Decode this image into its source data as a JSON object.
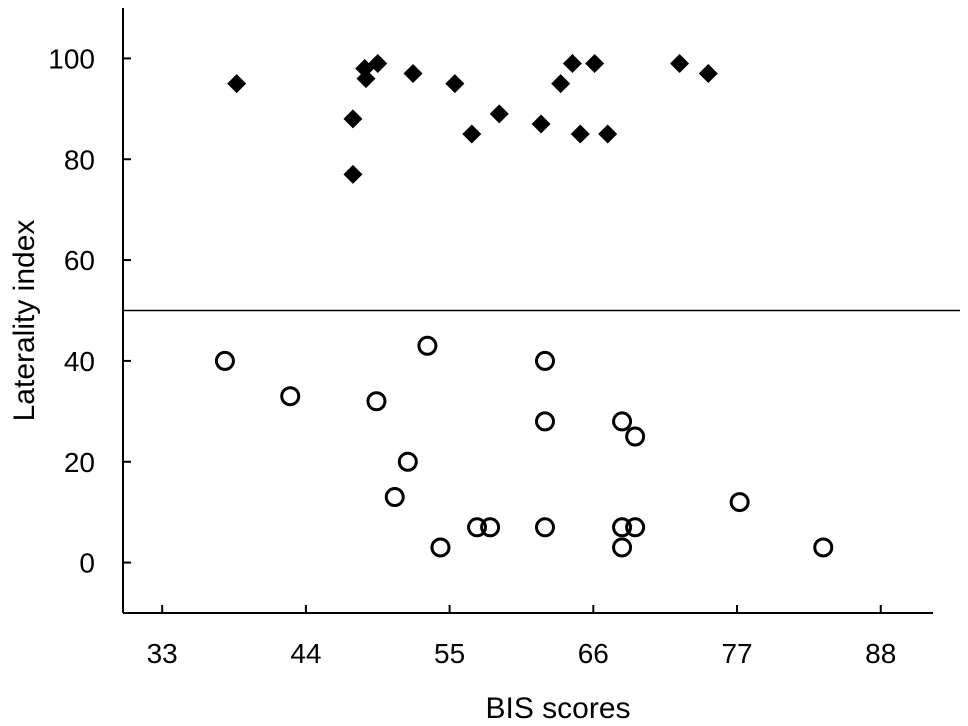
{
  "chart_data": {
    "type": "scatter",
    "title": "",
    "xlabel": "BIS scores",
    "ylabel": "Laterality index",
    "xlim": [
      30,
      92
    ],
    "ylim": [
      -10,
      110
    ],
    "x_ticks": [
      33,
      44,
      55,
      66,
      77,
      88
    ],
    "y_ticks": [
      0,
      20,
      40,
      60,
      80,
      100
    ],
    "grid": false,
    "reference_line": {
      "y": 50
    },
    "series": [
      {
        "marker": "filled-diamond",
        "color": "#000000",
        "points": [
          [
            38.7,
            95
          ],
          [
            47.6,
            88
          ],
          [
            47.6,
            77
          ],
          [
            48.5,
            98
          ],
          [
            48.6,
            96
          ],
          [
            49.5,
            99
          ],
          [
            52.2,
            97
          ],
          [
            55.4,
            95
          ],
          [
            56.7,
            85
          ],
          [
            58.8,
            89
          ],
          [
            62,
            87
          ],
          [
            63.5,
            95
          ],
          [
            64.4,
            99
          ],
          [
            65,
            85
          ],
          [
            66.1,
            99
          ],
          [
            67.1,
            85
          ],
          [
            72.6,
            99
          ],
          [
            74.8,
            97
          ]
        ]
      },
      {
        "marker": "open-circle",
        "color": "#000000",
        "points": [
          [
            37.8,
            40
          ],
          [
            42.8,
            33
          ],
          [
            49.4,
            32
          ],
          [
            51.8,
            20
          ],
          [
            50.8,
            13
          ],
          [
            53.3,
            43
          ],
          [
            54.3,
            3
          ],
          [
            57.1,
            7
          ],
          [
            58.1,
            7
          ],
          [
            62.3,
            40
          ],
          [
            62.3,
            28
          ],
          [
            62.3,
            7
          ],
          [
            68.2,
            28
          ],
          [
            69.2,
            25
          ],
          [
            68.2,
            7
          ],
          [
            69.2,
            7
          ],
          [
            68.2,
            3
          ],
          [
            77.2,
            12
          ],
          [
            83.6,
            3
          ]
        ]
      }
    ]
  }
}
